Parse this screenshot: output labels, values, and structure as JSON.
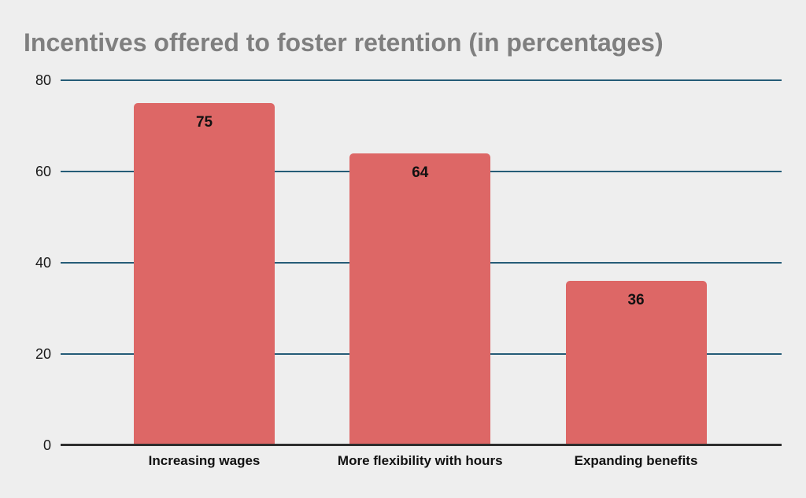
{
  "page": {
    "background": "#EEEEEE"
  },
  "chart_data": {
    "type": "bar",
    "title": "Incentives offered to foster retention (in percentages)",
    "categories": [
      "Increasing wages",
      "More flexibility with hours",
      "Expanding benefits"
    ],
    "values": [
      75,
      64,
      36
    ],
    "value_labels": [
      "75",
      "64",
      "36"
    ],
    "xlabel": "",
    "ylabel": "",
    "ylim": [
      0,
      80
    ],
    "yticks": [
      0,
      20,
      40,
      60,
      80
    ],
    "grid": "horizontal",
    "legend_position": "none",
    "colors": {
      "bar": "#DD6766",
      "gridline": "#255C77",
      "axis_line": "#2E2E2E",
      "title": "#7F7F7F",
      "tick_label": "#1A1A1A",
      "category_label": "#111111",
      "value_label": "#111111",
      "background": "#EEEEEE"
    }
  }
}
